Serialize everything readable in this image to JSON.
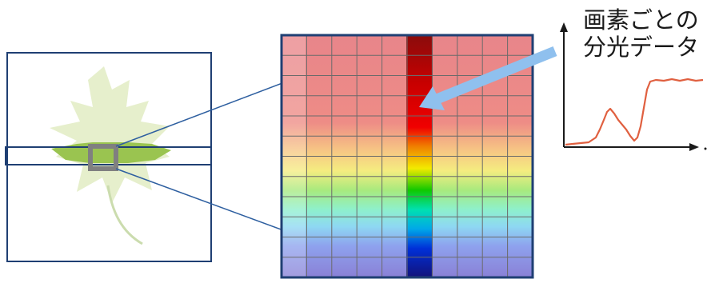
{
  "caption": {
    "line1": "画素ごとの",
    "line2": "分光データ"
  },
  "colors": {
    "frame": "#1f3f73",
    "connector": "#2e5fa0",
    "grid": "#6b6b6b",
    "arrow": "#8fc0ee",
    "spectrum_line": "#e06040",
    "leaf_light": "#e6efcc",
    "leaf_band": "#9ac450",
    "selector": "#808080"
  },
  "icons": {
    "leaf": "maple-leaf-icon",
    "spectrum": "spectrum-curve-icon"
  }
}
